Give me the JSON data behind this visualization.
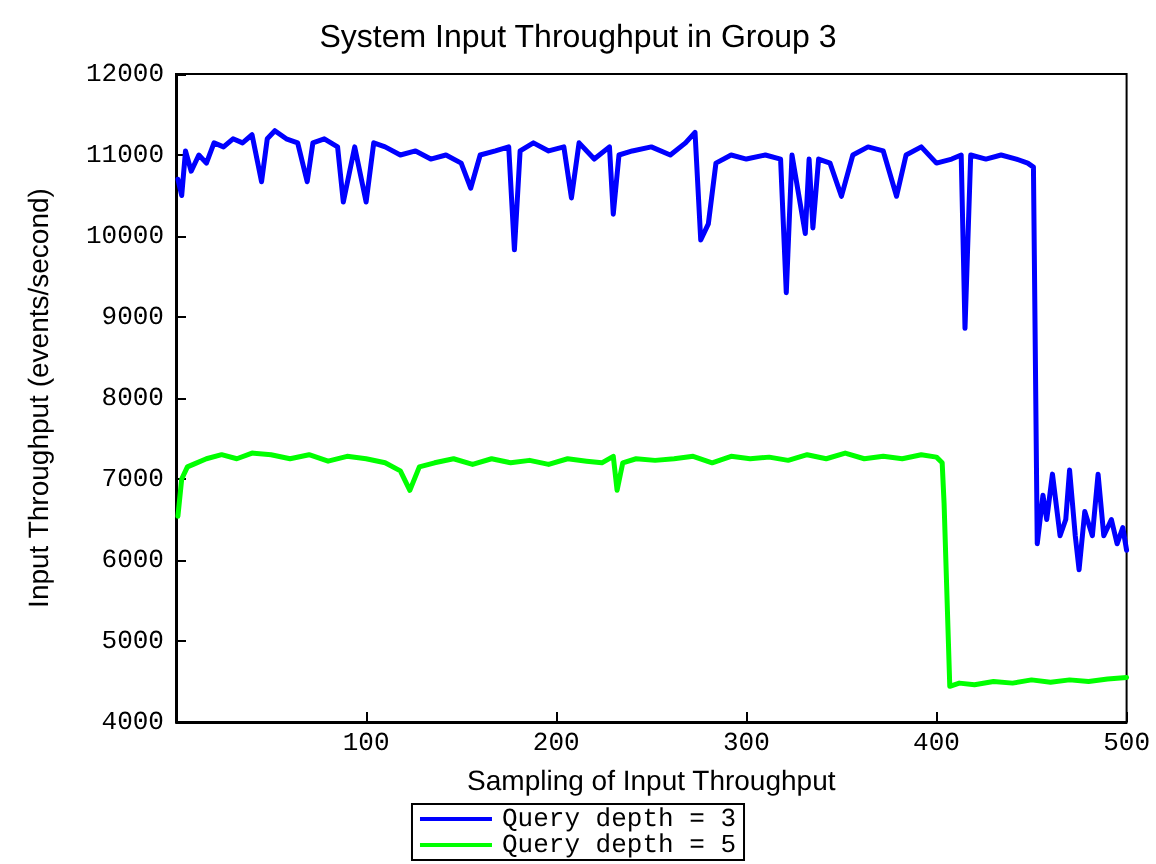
{
  "chart_data": {
    "type": "line",
    "title": "System Input Throughput in Group 3",
    "xlabel": "Sampling of Input Throughput",
    "ylabel": "Input Throughput (events/second)",
    "xlim": [
      0,
      500
    ],
    "xticks": [
      100,
      200,
      300,
      400,
      500
    ],
    "ylim": [
      4000,
      12000
    ],
    "yticks": [
      4000,
      5000,
      6000,
      7000,
      8000,
      9000,
      10000,
      11000,
      12000
    ],
    "grid": false,
    "legend": "bottom",
    "marker": "none",
    "line_style": "solid",
    "series": [
      {
        "name": "Query depth = 3",
        "color": "#0000ff",
        "x": [
          1,
          3,
          5,
          8,
          12,
          16,
          20,
          25,
          30,
          35,
          40,
          45,
          48,
          52,
          58,
          64,
          69,
          72,
          78,
          85,
          88,
          94,
          100,
          104,
          110,
          118,
          126,
          134,
          142,
          150,
          155,
          160,
          168,
          175,
          178,
          181,
          188,
          196,
          204,
          208,
          212,
          220,
          228,
          230,
          233,
          240,
          250,
          260,
          268,
          273,
          276,
          280,
          284,
          292,
          300,
          310,
          318,
          321,
          324,
          331,
          333,
          335,
          338,
          344,
          350,
          356,
          364,
          372,
          379,
          384,
          392,
          400,
          408,
          413,
          415,
          418,
          426,
          434,
          442,
          448,
          451,
          453,
          456,
          458,
          461,
          465,
          468,
          470,
          473,
          475,
          478,
          482,
          485,
          488,
          492,
          495,
          498,
          500
        ],
        "values": [
          10700,
          10500,
          11050,
          10800,
          11000,
          10900,
          11150,
          11100,
          11200,
          11150,
          11250,
          10670,
          11200,
          11300,
          11200,
          11150,
          10670,
          11150,
          11200,
          11100,
          10420,
          11100,
          10420,
          11150,
          11100,
          11000,
          11050,
          10950,
          11000,
          10900,
          10590,
          11000,
          11050,
          11100,
          9830,
          11050,
          11150,
          11050,
          11100,
          10470,
          11150,
          10950,
          11100,
          10270,
          11000,
          11050,
          11100,
          11000,
          11150,
          11280,
          9950,
          10150,
          10900,
          11000,
          10950,
          11000,
          10950,
          9300,
          11000,
          10030,
          10950,
          10100,
          10950,
          10900,
          10490,
          11000,
          11100,
          11050,
          10490,
          11000,
          11100,
          10900,
          10950,
          11000,
          8860,
          11000,
          10950,
          11000,
          10950,
          10900,
          10850,
          6200,
          6800,
          6500,
          7060,
          6300,
          6500,
          7110,
          6300,
          5880,
          6600,
          6300,
          7060,
          6300,
          6500,
          6200,
          6400,
          6120
        ]
      },
      {
        "name": "Query depth = 5",
        "color": "#00ff00",
        "x": [
          1,
          3,
          6,
          10,
          16,
          24,
          32,
          40,
          50,
          60,
          70,
          80,
          90,
          100,
          110,
          118,
          123,
          128,
          136,
          146,
          156,
          166,
          176,
          186,
          196,
          206,
          216,
          224,
          230,
          232,
          235,
          242,
          252,
          262,
          272,
          282,
          292,
          302,
          312,
          322,
          332,
          342,
          352,
          362,
          372,
          382,
          392,
          400,
          403,
          404,
          407,
          412,
          420,
          430,
          440,
          450,
          460,
          470,
          480,
          490,
          500
        ],
        "values": [
          6540,
          7000,
          7150,
          7190,
          7250,
          7300,
          7250,
          7320,
          7300,
          7250,
          7300,
          7220,
          7280,
          7250,
          7200,
          7100,
          6860,
          7150,
          7200,
          7250,
          7180,
          7250,
          7200,
          7230,
          7180,
          7250,
          7220,
          7200,
          7280,
          6860,
          7200,
          7250,
          7230,
          7250,
          7280,
          7200,
          7280,
          7250,
          7270,
          7230,
          7300,
          7250,
          7320,
          7250,
          7280,
          7250,
          7300,
          7270,
          7200,
          6700,
          4440,
          4480,
          4460,
          4500,
          4480,
          4520,
          4490,
          4520,
          4500,
          4530,
          4550
        ]
      }
    ]
  }
}
